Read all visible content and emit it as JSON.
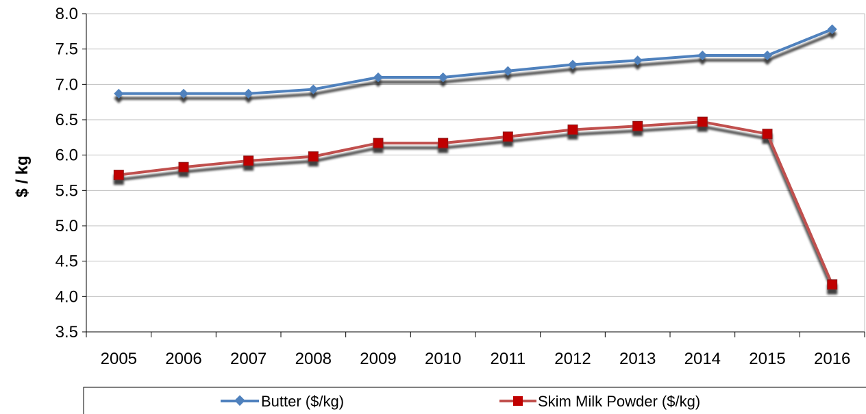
{
  "chart_data": {
    "type": "line",
    "title": "",
    "xlabel": "",
    "ylabel": "$ / kg",
    "categories": [
      "2005",
      "2006",
      "2007",
      "2008",
      "2009",
      "2010",
      "2011",
      "2012",
      "2013",
      "2014",
      "2015",
      "2016"
    ],
    "ylim": [
      3.5,
      8.0
    ],
    "yticks": [
      "3.5",
      "4.0",
      "4.5",
      "5.0",
      "5.5",
      "6.0",
      "6.5",
      "7.0",
      "7.5",
      "8.0"
    ],
    "grid": "horizontal",
    "legend_position": "bottom",
    "series": [
      {
        "name": "Butter ($/kg)",
        "color": "#4F81BD",
        "marker": "diamond",
        "values": [
          6.87,
          6.87,
          6.87,
          6.93,
          7.1,
          7.1,
          7.19,
          7.28,
          7.34,
          7.41,
          7.41,
          7.78
        ]
      },
      {
        "name": "Skim Milk Powder ($/kg)",
        "color": "#C0504D",
        "marker": "square",
        "values": [
          5.72,
          5.83,
          5.92,
          5.98,
          6.17,
          6.17,
          6.26,
          6.36,
          6.41,
          6.47,
          6.3,
          4.17
        ]
      }
    ]
  }
}
